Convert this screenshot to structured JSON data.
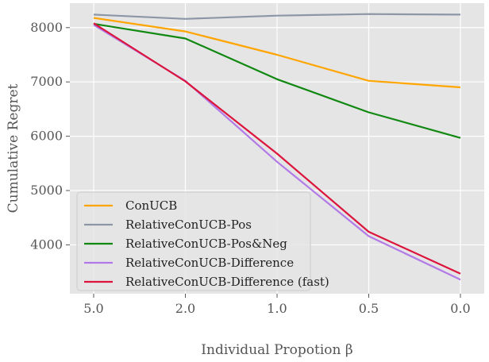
{
  "chart_data": {
    "type": "line",
    "title": "",
    "xlabel": "Individual Propotion β",
    "ylabel": "Cumulative Regret",
    "categories": [
      "5.0",
      "2.0",
      "1.0",
      "0.5",
      "0.0"
    ],
    "ylim": [
      3100,
      8450
    ],
    "yticks": [
      4000,
      5000,
      6000,
      7000,
      8000
    ],
    "grid": true,
    "legend_position": "lower-left",
    "background": "#e5e5e5",
    "series": [
      {
        "name": "ConUCB",
        "color": "#ffa500",
        "values": [
          8180,
          7930,
          7500,
          7020,
          6900
        ]
      },
      {
        "name": "RelativeConUCB-Pos",
        "color": "#8c96a6",
        "values": [
          8240,
          8160,
          8220,
          8250,
          8240
        ]
      },
      {
        "name": "RelativeConUCB-Pos&Neg",
        "color": "#118811",
        "values": [
          8070,
          7800,
          7050,
          6440,
          5970
        ]
      },
      {
        "name": "RelativeConUCB-Difference",
        "color": "#b27ae6",
        "values": [
          8050,
          7020,
          5530,
          4160,
          3360
        ]
      },
      {
        "name": "RelativeConUCB-Difference (fast)",
        "color": "#dc143c",
        "values": [
          8080,
          7010,
          5680,
          4240,
          3470
        ]
      }
    ]
  }
}
